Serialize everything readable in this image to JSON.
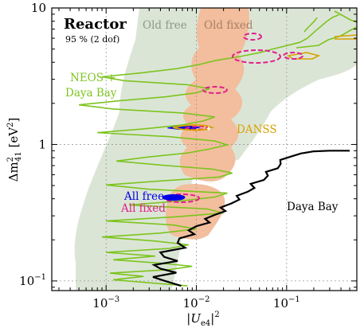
{
  "chart_data": {
    "type": "contour",
    "title": "Reactor",
    "subtitle": "95 % (2 dof)",
    "xlabel": "|U_e4|^2",
    "ylabel": "Δm²_41 [eV²]",
    "xscale": "log",
    "yscale": "log",
    "xlim": [
      0.00025,
      0.6
    ],
    "ylim": [
      0.085,
      10
    ],
    "grid": true,
    "x_ticks": [
      {
        "value": 0.001,
        "label": "10^-3"
      },
      {
        "value": 0.01,
        "label": "10^-2"
      },
      {
        "value": 0.1,
        "label": "10^-1"
      }
    ],
    "y_ticks": [
      {
        "value": 0.1,
        "label": "10^-1"
      },
      {
        "value": 1,
        "label": "1"
      },
      {
        "value": 10,
        "label": "10"
      }
    ],
    "labels": {
      "old_free": "Old free",
      "old_fixed": "Old fixed",
      "neos_line1": "NEOS +",
      "neos_line2": "Daya Bay",
      "danss": "DANSS",
      "daya_bay": "Daya Bay",
      "all_free": "All free",
      "all_fixed": "All fixed"
    },
    "colors": {
      "old_free": "#dbe5d6",
      "old_fixed": "#f2be9d",
      "neos_daya_bay": "#7dc41f",
      "danss": "#d9a100",
      "daya_bay": "#000000",
      "all_free": "#0000e6",
      "all_fixed": "#e0208c",
      "legend_old_free_text": "#8a9a86",
      "legend_old_fixed_text": "#a88066"
    },
    "series": [
      {
        "name": "Daya Bay",
        "points": [
          [
            0.0068,
            0.092
          ],
          [
            0.0045,
            0.1
          ],
          [
            0.0033,
            0.107
          ],
          [
            0.006,
            0.115
          ],
          [
            0.004,
            0.123
          ],
          [
            0.0034,
            0.131
          ],
          [
            0.0062,
            0.14
          ],
          [
            0.0044,
            0.15
          ],
          [
            0.004,
            0.162
          ],
          [
            0.0075,
            0.175
          ],
          [
            0.0062,
            0.19
          ],
          [
            0.0065,
            0.205
          ],
          [
            0.0095,
            0.22
          ],
          [
            0.0082,
            0.235
          ],
          [
            0.01,
            0.252
          ],
          [
            0.014,
            0.268
          ],
          [
            0.0125,
            0.285
          ],
          [
            0.016,
            0.305
          ],
          [
            0.021,
            0.325
          ],
          [
            0.0185,
            0.345
          ],
          [
            0.0245,
            0.37
          ],
          [
            0.03,
            0.395
          ],
          [
            0.028,
            0.42
          ],
          [
            0.037,
            0.45
          ],
          [
            0.044,
            0.48
          ],
          [
            0.04,
            0.515
          ],
          [
            0.056,
            0.55
          ],
          [
            0.062,
            0.59
          ],
          [
            0.059,
            0.63
          ],
          [
            0.08,
            0.67
          ],
          [
            0.086,
            0.72
          ],
          [
            0.085,
            0.77
          ],
          [
            0.115,
            0.82
          ],
          [
            0.145,
            0.86
          ],
          [
            0.2,
            0.89
          ],
          [
            0.3,
            0.9
          ],
          [
            0.5,
            0.9
          ]
        ]
      },
      {
        "name": "NEOS + Daya Bay",
        "points": [
          [
            0.008,
            0.092
          ],
          [
            0.003,
            0.097
          ],
          [
            0.0012,
            0.102
          ],
          [
            0.0026,
            0.108
          ],
          [
            0.0011,
            0.114
          ],
          [
            0.005,
            0.121
          ],
          [
            0.009,
            0.128
          ],
          [
            0.004,
            0.135
          ],
          [
            0.0012,
            0.143
          ],
          [
            0.0035,
            0.152
          ],
          [
            0.001,
            0.162
          ],
          [
            0.005,
            0.173
          ],
          [
            0.0082,
            0.184
          ],
          [
            0.0035,
            0.196
          ],
          [
            0.0009,
            0.21
          ],
          [
            0.004,
            0.224
          ],
          [
            0.01,
            0.24
          ],
          [
            0.0055,
            0.257
          ],
          [
            0.001,
            0.275
          ],
          [
            0.006,
            0.295
          ],
          [
            0.02,
            0.315
          ],
          [
            0.013,
            0.337
          ],
          [
            0.0018,
            0.36
          ],
          [
            0.0065,
            0.385
          ],
          [
            0.016,
            0.412
          ],
          [
            0.022,
            0.44
          ],
          [
            0.003,
            0.47
          ],
          [
            0.001,
            0.505
          ],
          [
            0.004,
            0.54
          ],
          [
            0.018,
            0.578
          ],
          [
            0.025,
            0.618
          ],
          [
            0.015,
            0.66
          ],
          [
            0.004,
            0.707
          ],
          [
            0.0013,
            0.756
          ],
          [
            0.003,
            0.81
          ],
          [
            0.008,
            0.866
          ],
          [
            0.014,
            0.927
          ],
          [
            0.022,
            0.992
          ],
          [
            0.016,
            1.06
          ],
          [
            0.005,
            1.14
          ],
          [
            0.0008,
            1.22
          ],
          [
            0.0026,
            1.3
          ],
          [
            0.007,
            1.39
          ],
          [
            0.012,
            1.49
          ],
          [
            0.016,
            1.59
          ],
          [
            0.007,
            1.7
          ],
          [
            0.0012,
            1.82
          ],
          [
            0.0005,
            1.95
          ],
          [
            0.0014,
            2.09
          ],
          [
            0.0045,
            2.23
          ],
          [
            0.01,
            2.39
          ],
          [
            0.014,
            2.56
          ],
          [
            0.008,
            2.74
          ],
          [
            0.0016,
            2.93
          ],
          [
            0.0009,
            3.13
          ],
          [
            0.0025,
            3.35
          ],
          [
            0.006,
            3.59
          ],
          [
            0.0105,
            3.84
          ],
          [
            0.016,
            4.11
          ],
          [
            0.03,
            4.4
          ],
          [
            0.05,
            4.7
          ],
          [
            0.07,
            5.0
          ],
          [
            0.1,
            5.3
          ],
          [
            0.14,
            5.6
          ],
          [
            0.17,
            6.0
          ],
          [
            0.21,
            6.8
          ],
          [
            0.28,
            8.0
          ],
          [
            0.33,
            8.6
          ],
          [
            0.38,
            8.9
          ]
        ]
      },
      {
        "name": "DANSS",
        "points": [
          [
            0.0055,
            1.33
          ],
          [
            0.007,
            1.37
          ],
          [
            0.01,
            1.39
          ],
          [
            0.013,
            1.37
          ],
          [
            0.015,
            1.33
          ],
          [
            0.013,
            1.29
          ],
          [
            0.01,
            1.27
          ],
          [
            0.007,
            1.29
          ],
          [
            0.0055,
            1.33
          ]
        ]
      },
      {
        "name": "All free",
        "points": [
          [
            0.0048,
            1.32
          ],
          [
            0.0062,
            1.36
          ],
          [
            0.0085,
            1.37
          ],
          [
            0.011,
            1.34
          ],
          [
            0.0092,
            1.3
          ],
          [
            0.0065,
            1.29
          ],
          [
            0.0048,
            1.32
          ]
        ]
      },
      {
        "name": "All fixed",
        "points": [
          [
            0.0075,
            1.31
          ],
          [
            0.009,
            1.35
          ],
          [
            0.0115,
            1.36
          ],
          [
            0.0135,
            1.33
          ],
          [
            0.012,
            1.29
          ],
          [
            0.009,
            1.29
          ],
          [
            0.0075,
            1.31
          ]
        ]
      }
    ]
  }
}
